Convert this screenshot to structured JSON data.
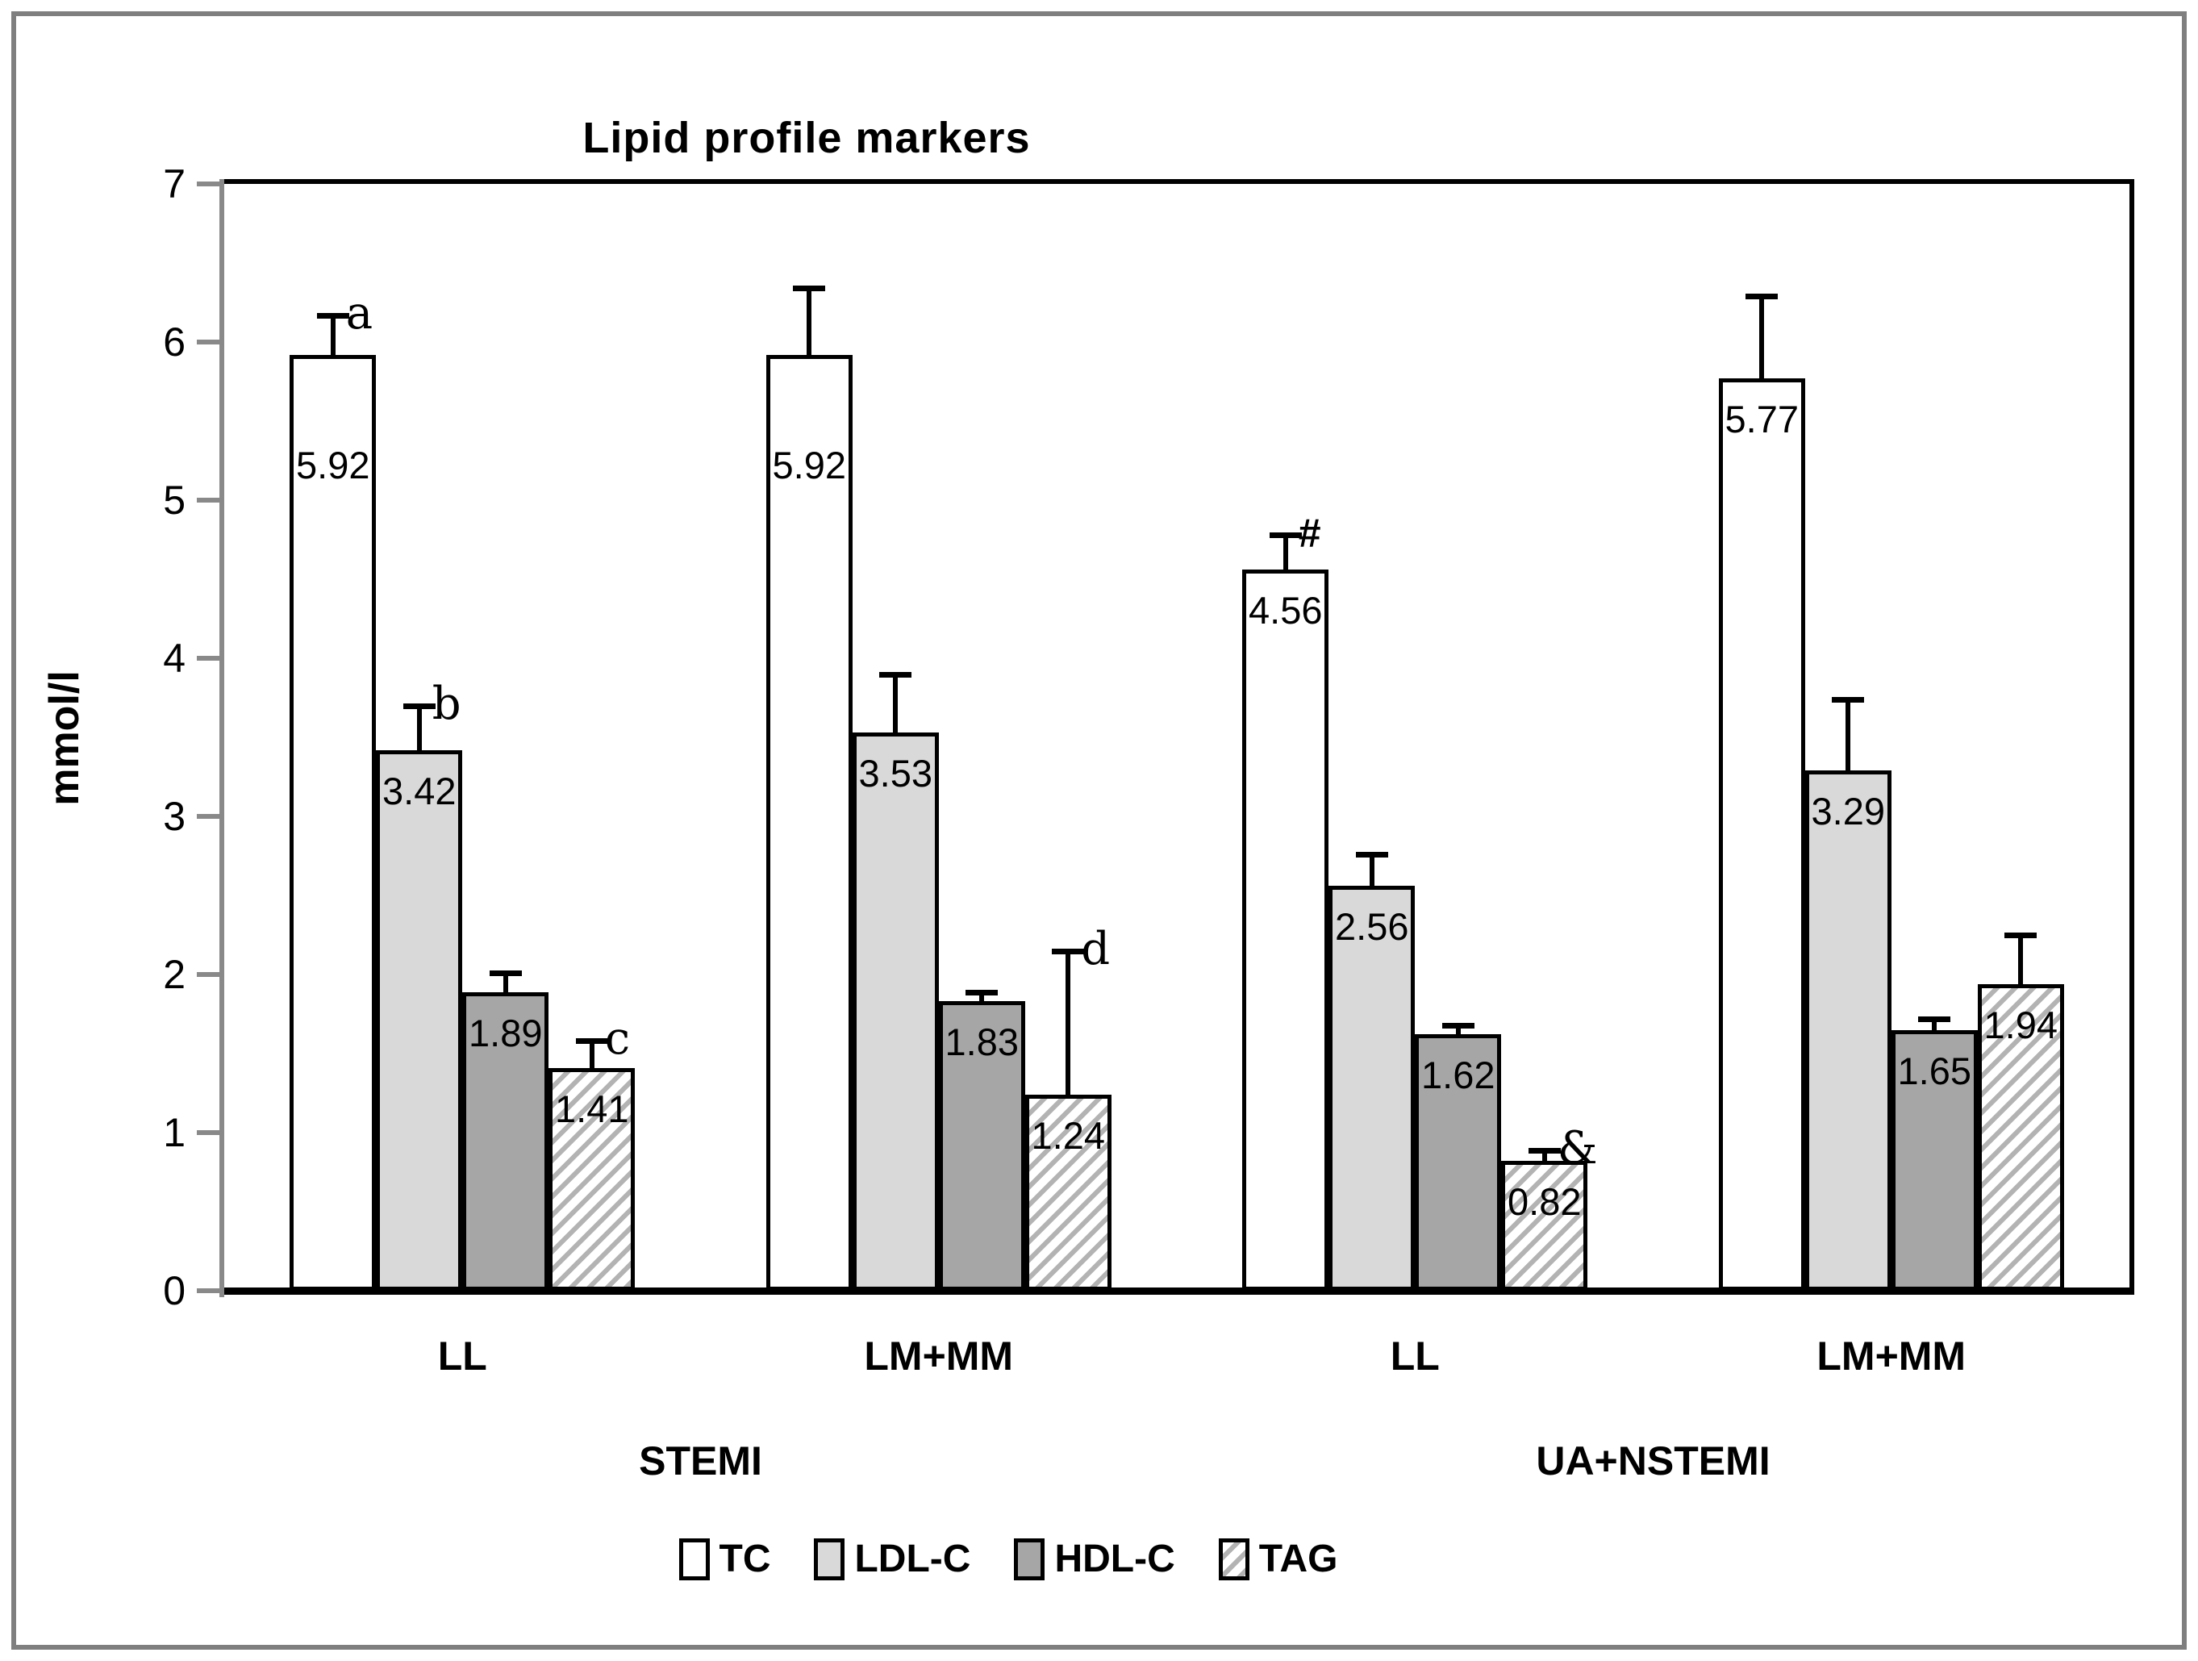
{
  "figure": {
    "title": "Lipid profile markers",
    "border_color": "#7f7f7f"
  },
  "y_axis": {
    "label": "mmol/l",
    "min": 0,
    "max": 7,
    "tick_labels": [
      "7",
      "6",
      "5",
      "4",
      "3",
      "2",
      "1",
      "0"
    ],
    "axis_color": "#898989"
  },
  "chart_data": {
    "type": "bar",
    "title": "Lipid profile markers",
    "ylabel": "mmol/l",
    "ylim": [
      0,
      7
    ],
    "yticks": [
      0,
      1,
      2,
      3,
      4,
      5,
      6,
      7
    ],
    "grid": false,
    "legend_position": "bottom",
    "categories": [
      "LL",
      "LM+MM",
      "LL",
      "LM+MM"
    ],
    "sections": [
      {
        "label": "STEMI",
        "categories": [
          0,
          1
        ]
      },
      {
        "label": "UA+NSTEMI",
        "categories": [
          2,
          3
        ]
      }
    ],
    "series": [
      {
        "name": "TC",
        "fill": "#ffffff",
        "values": [
          5.92,
          5.92,
          4.56,
          5.77
        ],
        "errors": [
          0.25,
          0.42,
          0.22,
          0.52
        ],
        "annotations": [
          "a",
          "",
          "#",
          ""
        ]
      },
      {
        "name": "LDL-C",
        "fill": "#d9d9d9",
        "values": [
          3.42,
          3.53,
          2.56,
          3.29
        ],
        "errors": [
          0.28,
          0.37,
          0.2,
          0.45
        ],
        "annotations": [
          "b",
          "",
          "",
          ""
        ]
      },
      {
        "name": "HDL-C",
        "fill": "#a6a6a6",
        "values": [
          1.89,
          1.83,
          1.62,
          1.65
        ],
        "errors": [
          0.12,
          0.06,
          0.06,
          0.07
        ],
        "annotations": [
          "",
          "",
          "",
          ""
        ]
      },
      {
        "name": "TAG",
        "fill": "hatch",
        "values": [
          1.41,
          1.24,
          0.82,
          1.94
        ],
        "errors": [
          0.17,
          0.91,
          0.07,
          0.31
        ],
        "annotations": [
          "c",
          "d",
          "&",
          ""
        ]
      }
    ],
    "legend": [
      "TC",
      "LDL-C",
      "HDL-C",
      "TAG"
    ],
    "error_bars": "upper only",
    "hatch_color": "#b3b3b3",
    "bar_border_color": "#000000"
  }
}
